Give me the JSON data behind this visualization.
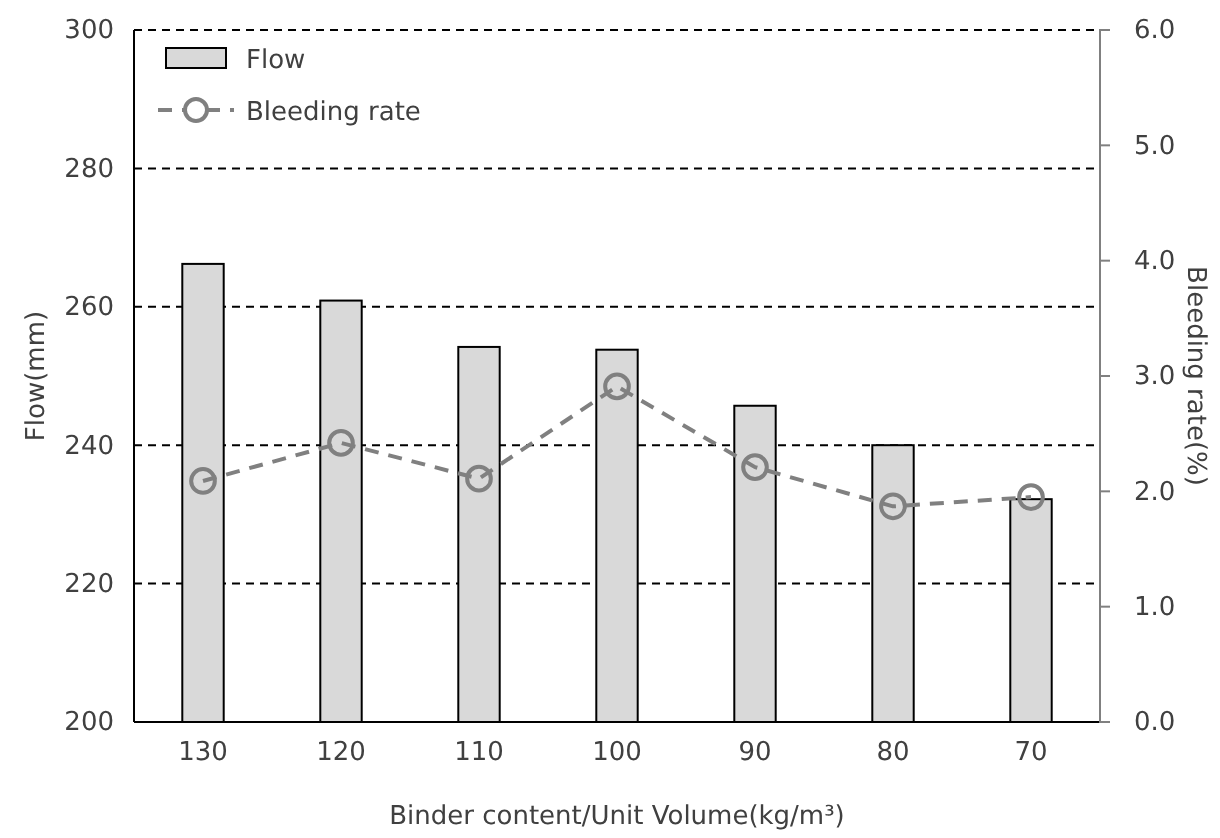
{
  "chart_data": {
    "type": "bar",
    "categories": [
      "130",
      "120",
      "110",
      "100",
      "90",
      "80",
      "70"
    ],
    "xlabel": "Binder content/Unit Volume(kg/m³)",
    "ylabel": "Flow(mm)",
    "y2label": "Bleeding rate(%)",
    "series": [
      {
        "name": "Flow",
        "color": "#d9d9d9",
        "values": [
          266.2,
          260.9,
          254.2,
          253.8,
          245.7,
          240,
          232.2
        ]
      },
      {
        "name": "Bleeding rate",
        "type": "line",
        "axis": "y2",
        "color": "#808080",
        "marker": "circle",
        "line_style": "dashed",
        "values": [
          2.09,
          2.42,
          2.11,
          2.91,
          2.21,
          1.87,
          1.95
        ]
      }
    ],
    "ylim": [
      200,
      300
    ],
    "yticks": [
      200,
      220,
      240,
      260,
      280,
      300
    ],
    "y2lim": [
      0,
      6
    ],
    "y2ticks": [
      {
        "value": 0,
        "label": "0.0"
      },
      {
        "value": 1,
        "label": "1.0"
      },
      {
        "value": 2,
        "label": "2.0"
      },
      {
        "value": 3,
        "label": "3.0"
      },
      {
        "value": 4,
        "label": "4.0"
      },
      {
        "value": 5,
        "label": "5.0"
      },
      {
        "value": 6,
        "label": "6.0"
      }
    ],
    "grid": "y",
    "legend": "top left"
  }
}
